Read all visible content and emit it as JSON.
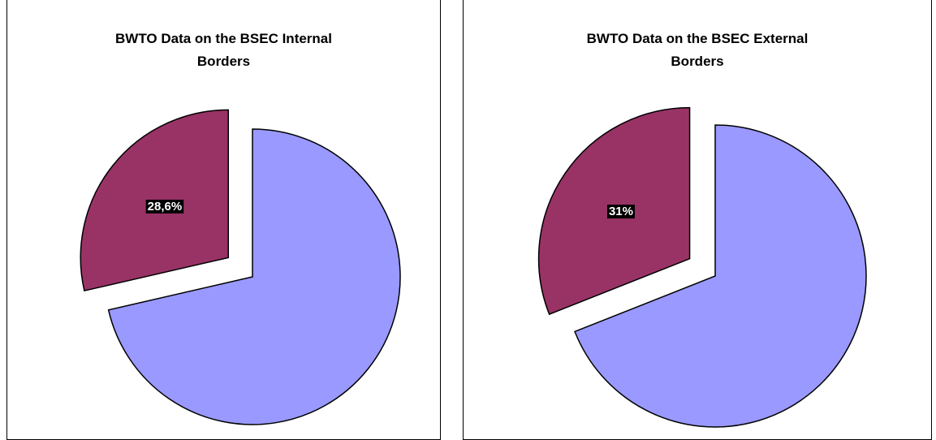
{
  "chart_data": [
    {
      "type": "pie",
      "title": "BWTO Data on the BSEC Internal Borders",
      "values": [
        71.4,
        28.6
      ],
      "value_labels": [
        null,
        "28,6%"
      ],
      "colors": [
        "#9999ff",
        "#993366"
      ],
      "explode": [
        false,
        true
      ]
    },
    {
      "type": "pie",
      "title": "BWTO Data on the BSEC External Borders",
      "values": [
        69,
        31
      ],
      "value_labels": [
        null,
        "31%"
      ],
      "colors": [
        "#9999ff",
        "#993366"
      ],
      "explode": [
        false,
        true
      ]
    }
  ]
}
